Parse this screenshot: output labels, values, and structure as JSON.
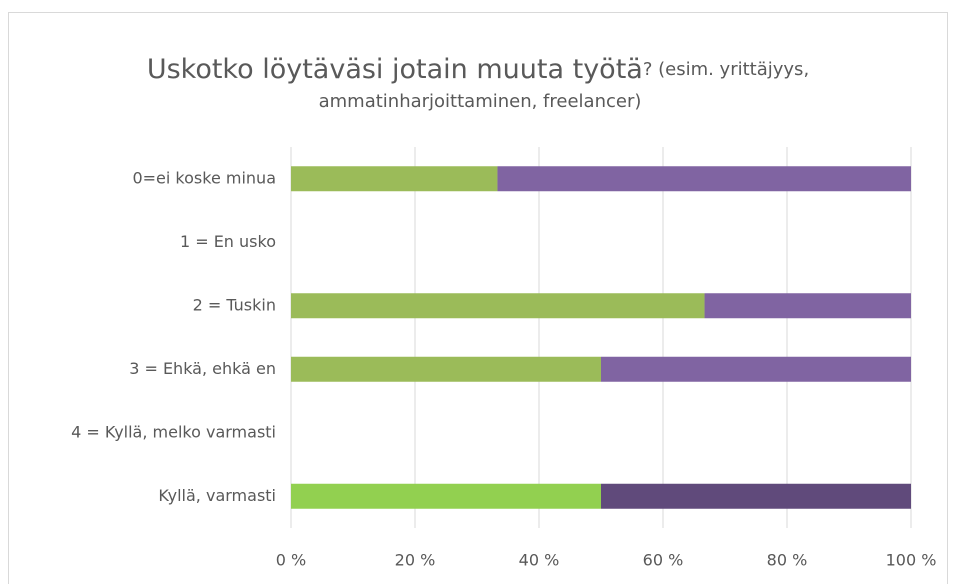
{
  "chart_data": {
    "type": "stacked_barh",
    "title": "Uskotko löytäväsi jotain muuta työtä",
    "subtitle": [
      "? (esim. yrittäjyys,",
      "ammatinharjoittaminen, freelancer)"
    ],
    "categories": [
      "0=ei koske minua",
      "1 = En usko",
      "2 = Tuskin",
      "3 = Ehkä, ehkä en",
      "4 = Kyllä, melko varmasti",
      "Kyllä, varmasti"
    ],
    "series": [
      {
        "color": "#9bbb59",
        "colors": [
          "#9bbb59",
          "#9bbb59",
          "#9bbb59",
          "#9bbb59",
          "#9bbb59",
          "#92d050"
        ],
        "values": [
          33.3,
          null,
          66.7,
          50,
          null,
          50
        ]
      },
      {
        "color": "#8064a2",
        "colors": [
          "#8064a2",
          "#8064a2",
          "#8064a2",
          "#8064a2",
          "#8064a2",
          "#604a7b"
        ],
        "values": [
          66.7,
          null,
          33.3,
          50,
          null,
          50
        ]
      }
    ],
    "xlim": [
      0,
      100
    ],
    "xticks": [
      {
        "value": 0,
        "label": "0 %"
      },
      {
        "value": 20,
        "label": "20 %"
      },
      {
        "value": 40,
        "label": "40 %"
      },
      {
        "value": 60,
        "label": "60 %"
      },
      {
        "value": 80,
        "label": "80 %"
      },
      {
        "value": 100,
        "label": "100 %"
      }
    ],
    "grid": true
  }
}
